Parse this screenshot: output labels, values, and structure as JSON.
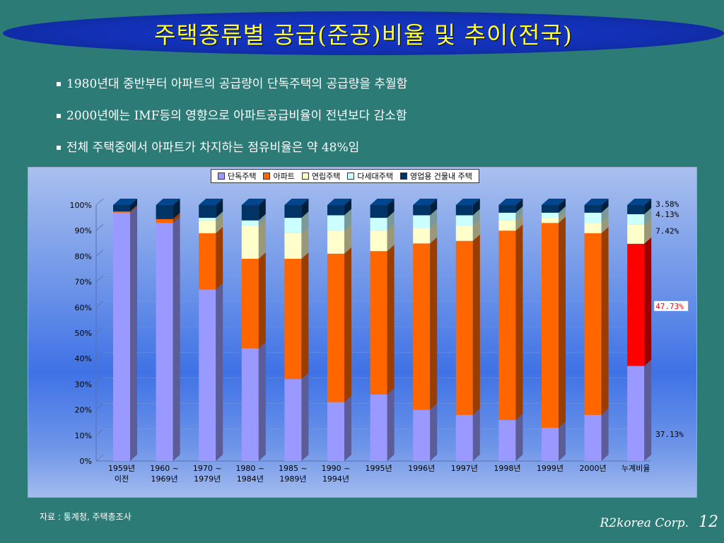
{
  "slide": {
    "title": "주택종류별 공급(준공)비율 및 추이(전국)",
    "bullets": [
      "1980년대 중반부터 아파트의 공급량이 단독주택의 공급량을 추월함",
      "2000년에는 IMF등의 영향으로 아파트공급비율이 전년보다 감소함",
      "전체 주택중에서 아파트가 차지하는 점유비율은 약 48%임"
    ],
    "source": "자료 : 통계청, 주택총조사",
    "company": "R2korea Corp.",
    "page_number": "12"
  },
  "chart_data": {
    "type": "bar",
    "stacked": true,
    "percent": true,
    "categories": [
      "1959년 이전",
      "1960 ~ 1969년",
      "1970 ~ 1979년",
      "1980 ~ 1984년",
      "1985 ~ 1989년",
      "1990 ~ 1994년",
      "1995년",
      "1996년",
      "1997년",
      "1998년",
      "1999년",
      "2000년",
      "누계비율"
    ],
    "series": [
      {
        "name": "단독주택",
        "color": "#9999ff",
        "values": [
          97,
          93,
          67,
          44,
          32,
          23,
          26,
          20,
          18,
          16,
          13,
          18,
          37.13
        ]
      },
      {
        "name": "아파트",
        "color": "#ff6600",
        "values": [
          0.5,
          1.5,
          22,
          35,
          47,
          58,
          56,
          65,
          68,
          74,
          80,
          71,
          47.73
        ]
      },
      {
        "name": "연립주택",
        "color": "#ffffcc",
        "values": [
          0,
          0,
          5,
          13,
          10,
          9,
          8,
          6,
          6,
          4,
          2,
          4,
          7.42
        ]
      },
      {
        "name": "다세대주택",
        "color": "#ccffff",
        "values": [
          0,
          0,
          1,
          2,
          6,
          6,
          5,
          5,
          4,
          3,
          2,
          4,
          4.13
        ]
      },
      {
        "name": "영업용 건물내 주택",
        "color": "#003366",
        "values": [
          2.5,
          5.5,
          5,
          6,
          5,
          4,
          5,
          4,
          4,
          3,
          3,
          3,
          3.58
        ]
      }
    ],
    "highlight": {
      "category": "누계비율",
      "series": "아파트",
      "color": "#ff0000"
    },
    "data_labels": [
      "3.58%",
      "4.13%",
      "7.42%",
      "47.73%",
      "37.13%"
    ],
    "y_ticks": [
      "0%",
      "10%",
      "20%",
      "30%",
      "40%",
      "50%",
      "60%",
      "70%",
      "80%",
      "90%",
      "100%"
    ],
    "ylim": [
      0,
      100
    ],
    "legend_position": "top"
  }
}
